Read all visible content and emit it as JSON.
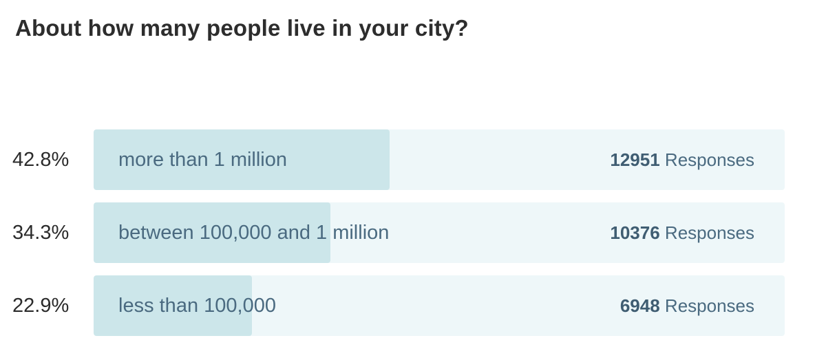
{
  "question": "About how many people live in your city?",
  "chart_data": {
    "type": "bar",
    "title": "About how many people live in your city?",
    "categories": [
      "more than 1 million",
      "between 100,000 and 1 million",
      "less than 100,000"
    ],
    "percent_labels": [
      "42.8%",
      "34.3%",
      "22.9%"
    ],
    "percents": [
      42.8,
      34.3,
      22.9
    ],
    "responses": [
      12951,
      10376,
      6948
    ],
    "response_word": "Responses"
  },
  "colors": {
    "track": "#eef7f9",
    "fill": "#cce6ea",
    "label_text": "#4a6a80"
  }
}
